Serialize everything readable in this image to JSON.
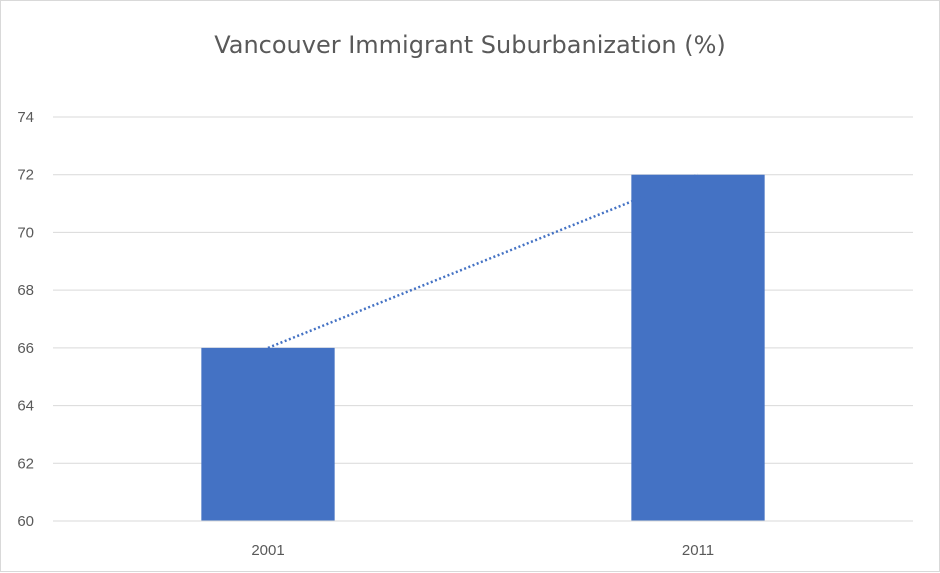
{
  "chart_data": {
    "type": "bar",
    "title": "Vancouver Immigrant Suburbanization (%)",
    "xlabel": "",
    "ylabel": "",
    "categories": [
      "2001",
      "2011"
    ],
    "values": [
      66,
      72
    ],
    "ylim": [
      60,
      74
    ],
    "yticks": [
      "60",
      "62",
      "64",
      "66",
      "68",
      "70",
      "72",
      "74"
    ],
    "trendline": {
      "style": "dotted",
      "shown": true
    },
    "grid": true,
    "legend": "none",
    "colors": {
      "bar": "#4472C4",
      "trend": "#4472C4",
      "grid": "#d9d9d9",
      "text": "#595959"
    }
  }
}
